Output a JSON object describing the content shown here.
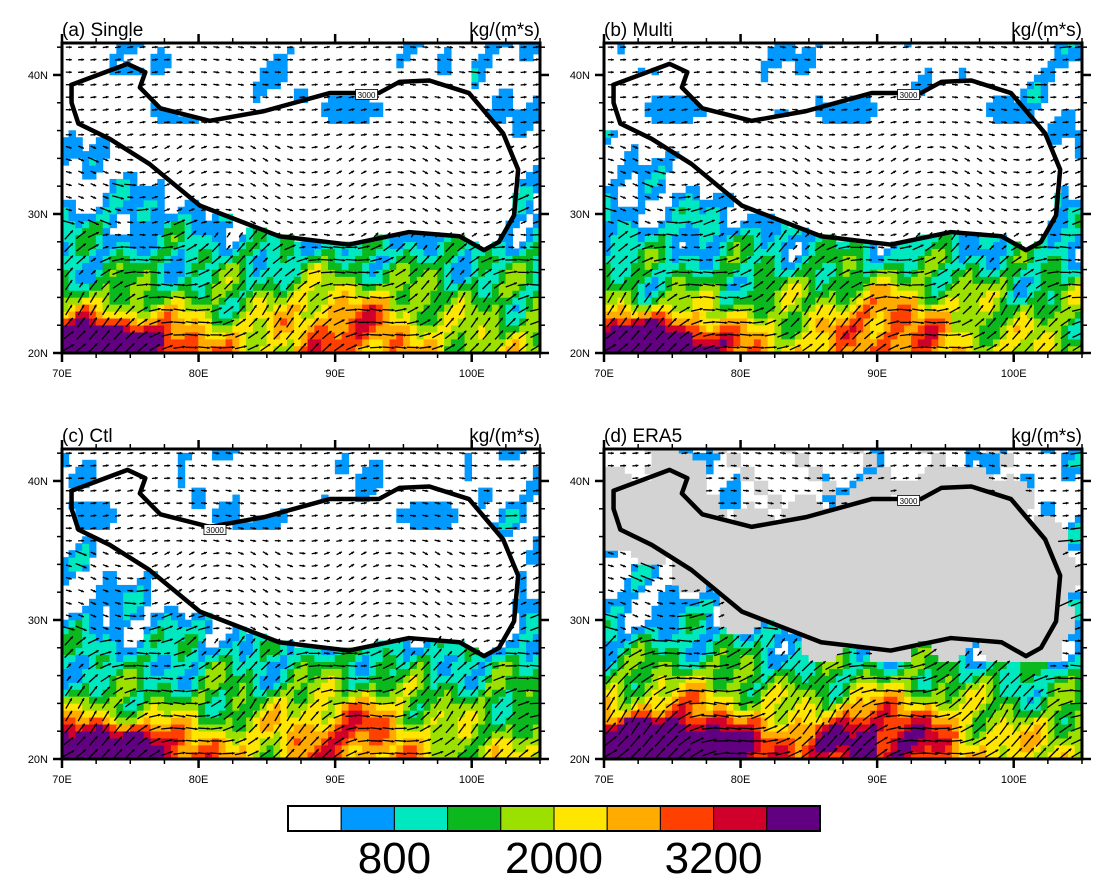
{
  "panels": [
    {
      "id": "a",
      "title": "(a) Single",
      "units": "kg/(m*s)",
      "contour_label": "3000",
      "type": "model"
    },
    {
      "id": "b",
      "title": "(b) Multi",
      "units": "kg/(m*s)",
      "contour_label": "3000",
      "type": "model"
    },
    {
      "id": "c",
      "title": "(c) Ctl",
      "units": "kg/(m*s)",
      "contour_label": "3000",
      "type": "model"
    },
    {
      "id": "d",
      "title": "(d) ERA5",
      "units": "kg/(m*s)",
      "contour_label": "3000",
      "type": "reanalysis"
    }
  ],
  "axes": {
    "lon_range": [
      70,
      105
    ],
    "lat_range": [
      20,
      42.3
    ],
    "x_ticks": [
      "70E",
      "80E",
      "90E",
      "100E"
    ],
    "x_tick_values": [
      70,
      80,
      90,
      100
    ],
    "y_ticks": [
      "20N",
      "30N",
      "40N"
    ],
    "y_tick_values": [
      20,
      30,
      40
    ]
  },
  "colorbar": {
    "colors": [
      "#ffffff",
      "#0099ff",
      "#00e8c0",
      "#0bb81e",
      "#9ce000",
      "#ffe600",
      "#ffab00",
      "#ff4000",
      "#d1002a",
      "#610080"
    ],
    "levels": [
      400,
      800,
      1200,
      1600,
      2000,
      2400,
      2800,
      3200,
      3600
    ],
    "labels": [
      "800",
      "2000",
      "3200"
    ],
    "label_levels": [
      800,
      2000,
      3200
    ]
  },
  "mask_color": "#d3d3d3",
  "contour_level_m": 3000
}
